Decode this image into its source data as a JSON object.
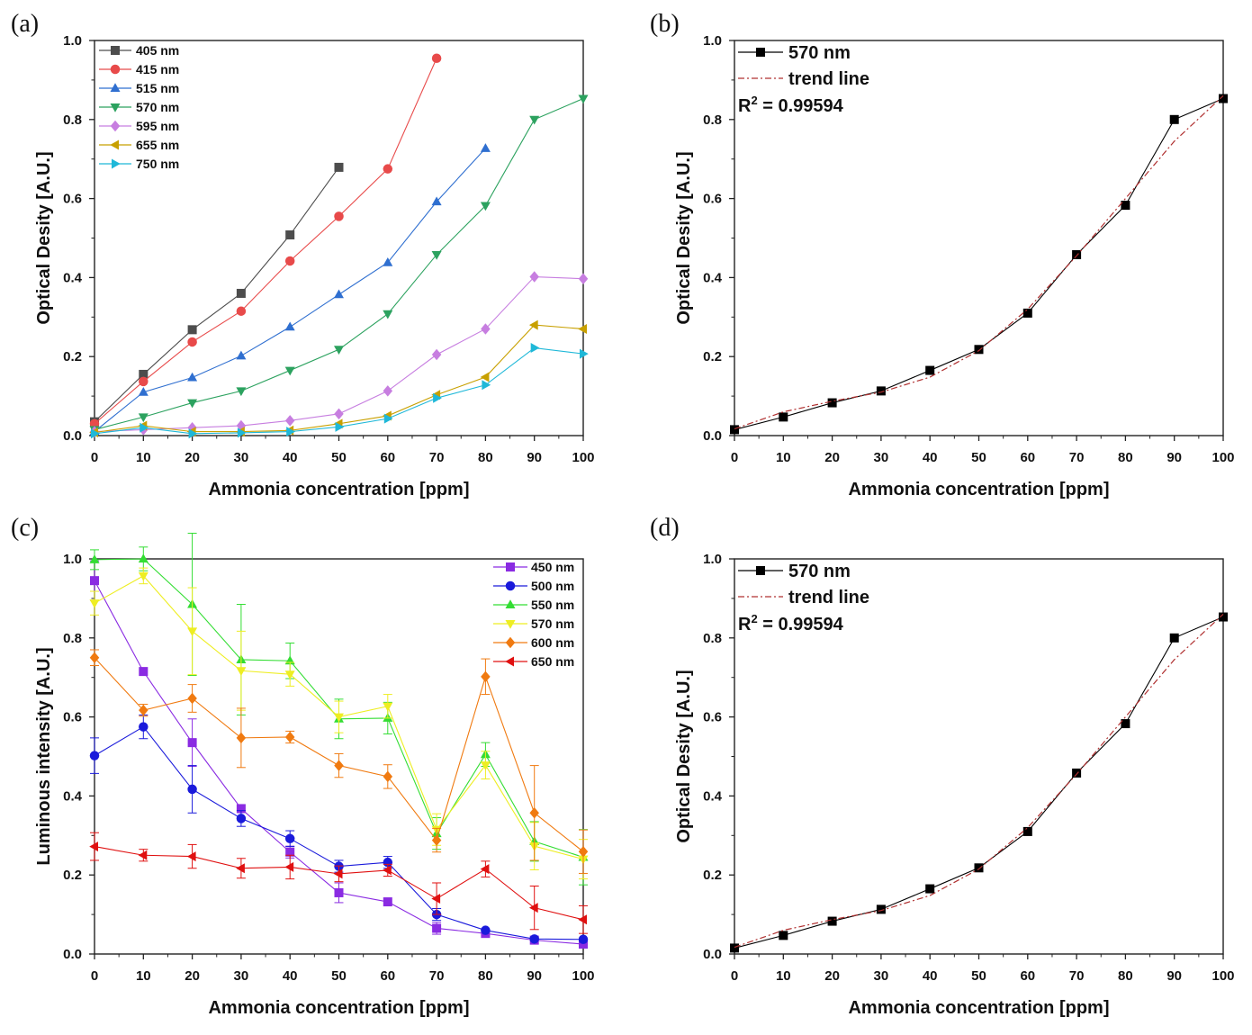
{
  "panel_labels": [
    "(a)",
    "(b)",
    "(c)",
    "(d)"
  ],
  "chart_data": [
    {
      "panel": "(a)",
      "type": "line",
      "xlabel": "Ammonia concentration [ppm]",
      "ylabel": "Optical Desity [A.U.]",
      "xlim": [
        0,
        100
      ],
      "ylim": [
        0,
        1.0
      ],
      "xticks": [
        0,
        10,
        20,
        30,
        40,
        50,
        60,
        70,
        80,
        90,
        100
      ],
      "yticks": [
        0.0,
        0.2,
        0.4,
        0.6,
        0.8,
        1.0
      ],
      "grid": false,
      "legend_position": "top-left",
      "series": [
        {
          "name": "405 nm",
          "color": "#4d4d4d",
          "marker": "square",
          "x": [
            0,
            10,
            20,
            30,
            40,
            50
          ],
          "y": [
            0.035,
            0.155,
            0.268,
            0.36,
            0.508,
            0.679
          ]
        },
        {
          "name": "415 nm",
          "color": "#e84a4a",
          "marker": "circle",
          "x": [
            0,
            10,
            20,
            30,
            40,
            50,
            60,
            70
          ],
          "y": [
            0.03,
            0.137,
            0.237,
            0.315,
            0.442,
            0.555,
            0.675,
            0.955
          ]
        },
        {
          "name": "515 nm",
          "color": "#2f6fd0",
          "marker": "triangle-up",
          "x": [
            0,
            10,
            20,
            30,
            40,
            50,
            60,
            70,
            80
          ],
          "y": [
            0.01,
            0.11,
            0.147,
            0.202,
            0.275,
            0.357,
            0.438,
            0.592,
            0.727
          ]
        },
        {
          "name": "570 nm",
          "color": "#2ca25f",
          "marker": "triangle-down",
          "x": [
            0,
            10,
            20,
            30,
            40,
            50,
            60,
            70,
            80,
            90,
            100
          ],
          "y": [
            0.015,
            0.047,
            0.083,
            0.113,
            0.165,
            0.218,
            0.308,
            0.458,
            0.582,
            0.8,
            0.853
          ]
        },
        {
          "name": "595 nm",
          "color": "#c77ee0",
          "marker": "diamond",
          "x": [
            0,
            10,
            20,
            30,
            40,
            50,
            60,
            70,
            80,
            90,
            100
          ],
          "y": [
            0.01,
            0.015,
            0.02,
            0.025,
            0.038,
            0.055,
            0.113,
            0.205,
            0.27,
            0.402,
            0.397
          ]
        },
        {
          "name": "655 nm",
          "color": "#c8a000",
          "marker": "triangle-left",
          "x": [
            0,
            10,
            20,
            30,
            40,
            50,
            60,
            70,
            80,
            90,
            100
          ],
          "y": [
            0.008,
            0.025,
            0.01,
            0.01,
            0.013,
            0.03,
            0.05,
            0.103,
            0.148,
            0.28,
            0.27
          ]
        },
        {
          "name": "750 nm",
          "color": "#1fb8d8",
          "marker": "triangle-right",
          "x": [
            0,
            10,
            20,
            30,
            40,
            50,
            60,
            70,
            80,
            90,
            100
          ],
          "y": [
            0.005,
            0.02,
            0.005,
            0.007,
            0.01,
            0.022,
            0.043,
            0.095,
            0.128,
            0.222,
            0.207
          ]
        }
      ]
    },
    {
      "panel": "(b)",
      "type": "line",
      "xlabel": "Ammonia concentration [ppm]",
      "ylabel": "Optical Desity [A.U.]",
      "xlim": [
        0,
        100
      ],
      "ylim": [
        0,
        1.0
      ],
      "xticks": [
        0,
        10,
        20,
        30,
        40,
        50,
        60,
        70,
        80,
        90,
        100
      ],
      "yticks": [
        0.0,
        0.2,
        0.4,
        0.6,
        0.8,
        1.0
      ],
      "grid": false,
      "legend_position": "top-left",
      "annotation": "R² = 0.99594",
      "series": [
        {
          "name": "570 nm",
          "color": "#000000",
          "marker": "square",
          "x": [
            0,
            10,
            20,
            30,
            40,
            50,
            60,
            70,
            80,
            90,
            100
          ],
          "y": [
            0.015,
            0.047,
            0.083,
            0.113,
            0.165,
            0.218,
            0.31,
            0.458,
            0.583,
            0.8,
            0.853
          ]
        },
        {
          "name": "trend line",
          "color": "#b03030",
          "marker": "none",
          "dash": true,
          "x": [
            0,
            10,
            20,
            30,
            40,
            50,
            60,
            70,
            80,
            90,
            100
          ],
          "y": [
            0.017,
            0.06,
            0.087,
            0.11,
            0.148,
            0.215,
            0.32,
            0.455,
            0.6,
            0.745,
            0.86
          ]
        }
      ]
    },
    {
      "panel": "(c)",
      "type": "line",
      "xlabel": "Ammonia concentration [ppm]",
      "ylabel": "Luminous intensity [A.U.]",
      "xlim": [
        0,
        100
      ],
      "ylim": [
        0,
        1.0
      ],
      "xticks": [
        0,
        10,
        20,
        30,
        40,
        50,
        60,
        70,
        80,
        90,
        100
      ],
      "yticks": [
        0.0,
        0.2,
        0.4,
        0.6,
        0.8,
        1.0
      ],
      "grid": false,
      "legend_position": "top-right",
      "series": [
        {
          "name": "450 nm",
          "color": "#8a2be2",
          "marker": "square",
          "x": [
            0,
            10,
            20,
            30,
            40,
            50,
            60,
            70,
            80,
            90,
            100
          ],
          "y": [
            0.945,
            0.715,
            0.535,
            0.368,
            0.258,
            0.155,
            0.132,
            0.065,
            0.052,
            0.035,
            0.025
          ],
          "err": [
            0.05,
            0,
            0.06,
            0,
            0.015,
            0.025,
            0,
            0.015,
            0,
            0,
            0
          ]
        },
        {
          "name": "500 nm",
          "color": "#1a1adb",
          "marker": "circle",
          "x": [
            0,
            10,
            20,
            30,
            40,
            50,
            60,
            70,
            80,
            90,
            100
          ],
          "y": [
            0.502,
            0.575,
            0.417,
            0.343,
            0.292,
            0.222,
            0.232,
            0.1,
            0.06,
            0.038,
            0.037
          ],
          "err": [
            0.045,
            0.03,
            0.06,
            0.02,
            0.02,
            0.015,
            0.015,
            0.015,
            0,
            0,
            0
          ]
        },
        {
          "name": "550 nm",
          "color": "#33dd33",
          "marker": "triangle-up",
          "x": [
            0,
            10,
            20,
            30,
            40,
            50,
            60,
            70,
            80,
            90,
            100
          ],
          "y": [
            0.998,
            1.0,
            0.885,
            0.745,
            0.742,
            0.595,
            0.597,
            0.305,
            0.505,
            0.285,
            0.245
          ],
          "err": [
            0.025,
            0.03,
            0.18,
            0.14,
            0.045,
            0.05,
            0.04,
            0.04,
            0.03,
            0.05,
            0.07
          ]
        },
        {
          "name": "570 nm",
          "color": "#eeee22",
          "marker": "triangle-down",
          "x": [
            0,
            10,
            20,
            30,
            40,
            50,
            60,
            70,
            80,
            90,
            100
          ],
          "y": [
            0.888,
            0.957,
            0.817,
            0.717,
            0.708,
            0.6,
            0.627,
            0.315,
            0.478,
            0.273,
            0.24
          ],
          "err": [
            0.03,
            0.02,
            0.11,
            0.1,
            0.03,
            0.04,
            0.03,
            0.04,
            0.035,
            0.06,
            0.05
          ]
        },
        {
          "name": "600 nm",
          "color": "#f07a10",
          "marker": "diamond",
          "x": [
            0,
            10,
            20,
            30,
            40,
            50,
            60,
            70,
            80,
            90,
            100
          ],
          "y": [
            0.75,
            0.617,
            0.647,
            0.547,
            0.549,
            0.477,
            0.449,
            0.288,
            0.702,
            0.357,
            0.259
          ],
          "err": [
            0.02,
            0.015,
            0.035,
            0.075,
            0.015,
            0.03,
            0.03,
            0.03,
            0.045,
            0.12,
            0.055
          ]
        },
        {
          "name": "650 nm",
          "color": "#e01010",
          "marker": "triangle-left",
          "x": [
            0,
            10,
            20,
            30,
            40,
            50,
            60,
            70,
            80,
            90,
            100
          ],
          "y": [
            0.272,
            0.25,
            0.247,
            0.217,
            0.22,
            0.203,
            0.212,
            0.14,
            0.215,
            0.117,
            0.087
          ],
          "err": [
            0.035,
            0.015,
            0.03,
            0.025,
            0.03,
            0.02,
            0.015,
            0.04,
            0.02,
            0.055,
            0.035
          ]
        }
      ]
    },
    {
      "panel": "(d)",
      "type": "line",
      "xlabel": "Ammonia concentration [ppm]",
      "ylabel": "Optical Desity [A.U.]",
      "xlim": [
        0,
        100
      ],
      "ylim": [
        0,
        1.0
      ],
      "xticks": [
        0,
        10,
        20,
        30,
        40,
        50,
        60,
        70,
        80,
        90,
        100
      ],
      "yticks": [
        0.0,
        0.2,
        0.4,
        0.6,
        0.8,
        1.0
      ],
      "grid": false,
      "legend_position": "top-left",
      "annotation": "R² = 0.99594",
      "series": [
        {
          "name": "570 nm",
          "color": "#000000",
          "marker": "square",
          "x": [
            0,
            10,
            20,
            30,
            40,
            50,
            60,
            70,
            80,
            90,
            100
          ],
          "y": [
            0.015,
            0.047,
            0.083,
            0.113,
            0.165,
            0.218,
            0.31,
            0.458,
            0.583,
            0.8,
            0.853
          ]
        },
        {
          "name": "trend line",
          "color": "#b03030",
          "marker": "none",
          "dash": true,
          "x": [
            0,
            10,
            20,
            30,
            40,
            50,
            60,
            70,
            80,
            90,
            100
          ],
          "y": [
            0.017,
            0.06,
            0.087,
            0.11,
            0.148,
            0.215,
            0.32,
            0.455,
            0.6,
            0.745,
            0.86
          ]
        }
      ]
    }
  ]
}
